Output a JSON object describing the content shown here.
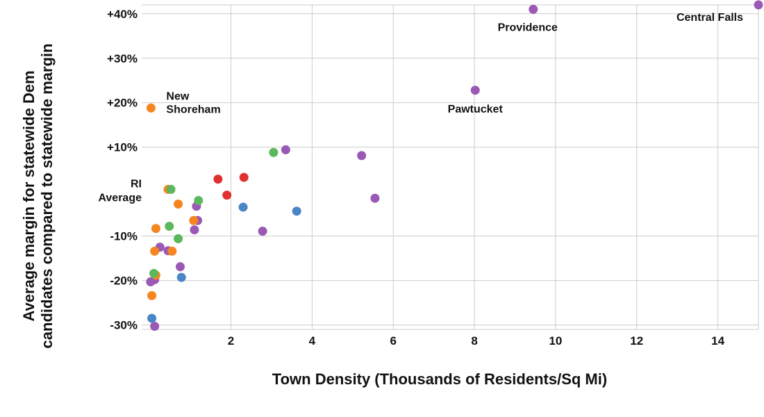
{
  "chart_data": {
    "type": "scatter",
    "title": "",
    "xlabel": "Town Density (Thousands of Residents/Sq Mi)",
    "ylabel": [
      "Average margin for statewide Dem",
      "candidates compared to statewide margin"
    ],
    "xlim": [
      -0.2,
      15
    ],
    "ylim": [
      -31,
      42
    ],
    "x_ticks": [
      2,
      4,
      6,
      8,
      10,
      12,
      14
    ],
    "x_tick_labels": [
      "2",
      "4",
      "6",
      "8",
      "10",
      "12",
      "14"
    ],
    "y_ticks": [
      40,
      30,
      20,
      10,
      -10,
      -20,
      -30
    ],
    "y_tick_labels": [
      "+40%",
      "+30%",
      "+20%",
      "+10%",
      "-10%",
      "-20%",
      "-30%"
    ],
    "grid": true,
    "colors": {
      "purple": "#9b59b6",
      "orange": "#f5861f",
      "green": "#5cb85c",
      "blue": "#4a86c5",
      "red": "#e03131"
    },
    "series": [
      {
        "color": "purple",
        "points": [
          [
            15.0,
            42.0
          ],
          [
            9.45,
            41.0
          ],
          [
            8.02,
            22.8
          ],
          [
            3.35,
            9.4
          ],
          [
            5.22,
            8.1
          ],
          [
            5.55,
            -1.5
          ],
          [
            1.15,
            -3.3
          ],
          [
            1.18,
            -6.5
          ],
          [
            1.1,
            -8.6
          ],
          [
            2.78,
            -8.9
          ],
          [
            0.25,
            -12.5
          ],
          [
            0.45,
            -13.3
          ],
          [
            0.75,
            -16.9
          ],
          [
            0.12,
            -19.8
          ],
          [
            0.02,
            -20.3
          ],
          [
            0.12,
            -30.3
          ]
        ]
      },
      {
        "color": "orange",
        "points": [
          [
            0.03,
            18.8
          ],
          [
            0.45,
            0.5
          ],
          [
            0.7,
            -2.8
          ],
          [
            1.08,
            -6.5
          ],
          [
            0.15,
            -8.3
          ],
          [
            0.12,
            -13.4
          ],
          [
            0.55,
            -13.4
          ],
          [
            0.15,
            -18.8
          ],
          [
            0.05,
            -23.4
          ]
        ]
      },
      {
        "color": "green",
        "points": [
          [
            3.05,
            8.8
          ],
          [
            0.52,
            0.5
          ],
          [
            1.2,
            -2.0
          ],
          [
            0.48,
            -7.8
          ],
          [
            0.7,
            -10.6
          ],
          [
            0.1,
            -18.4
          ]
        ]
      },
      {
        "color": "blue",
        "points": [
          [
            2.3,
            -3.5
          ],
          [
            3.62,
            -4.4
          ],
          [
            0.78,
            -19.3
          ],
          [
            0.05,
            -28.5
          ]
        ]
      },
      {
        "color": "red",
        "points": [
          [
            2.32,
            3.2
          ],
          [
            1.68,
            2.8
          ],
          [
            1.9,
            -0.8
          ]
        ]
      }
    ],
    "annotations": [
      {
        "id": "annotation-providence",
        "lines": [
          "Providence"
        ],
        "x": 9.45,
        "y": 41.0
      },
      {
        "id": "annotation-central-falls",
        "lines": [
          "Central Falls"
        ],
        "x": 15.0,
        "y": 42.0
      },
      {
        "id": "annotation-pawtucket",
        "lines": [
          "Pawtucket"
        ],
        "x": 8.02,
        "y": 22.8
      },
      {
        "id": "annotation-new-shoreham",
        "lines": [
          "New",
          "Shoreham"
        ],
        "x": 0.03,
        "y": 18.8
      },
      {
        "id": "annotation-ri-average",
        "lines": [
          "RI",
          "Average"
        ],
        "x": -0.2,
        "y": 0
      }
    ]
  }
}
